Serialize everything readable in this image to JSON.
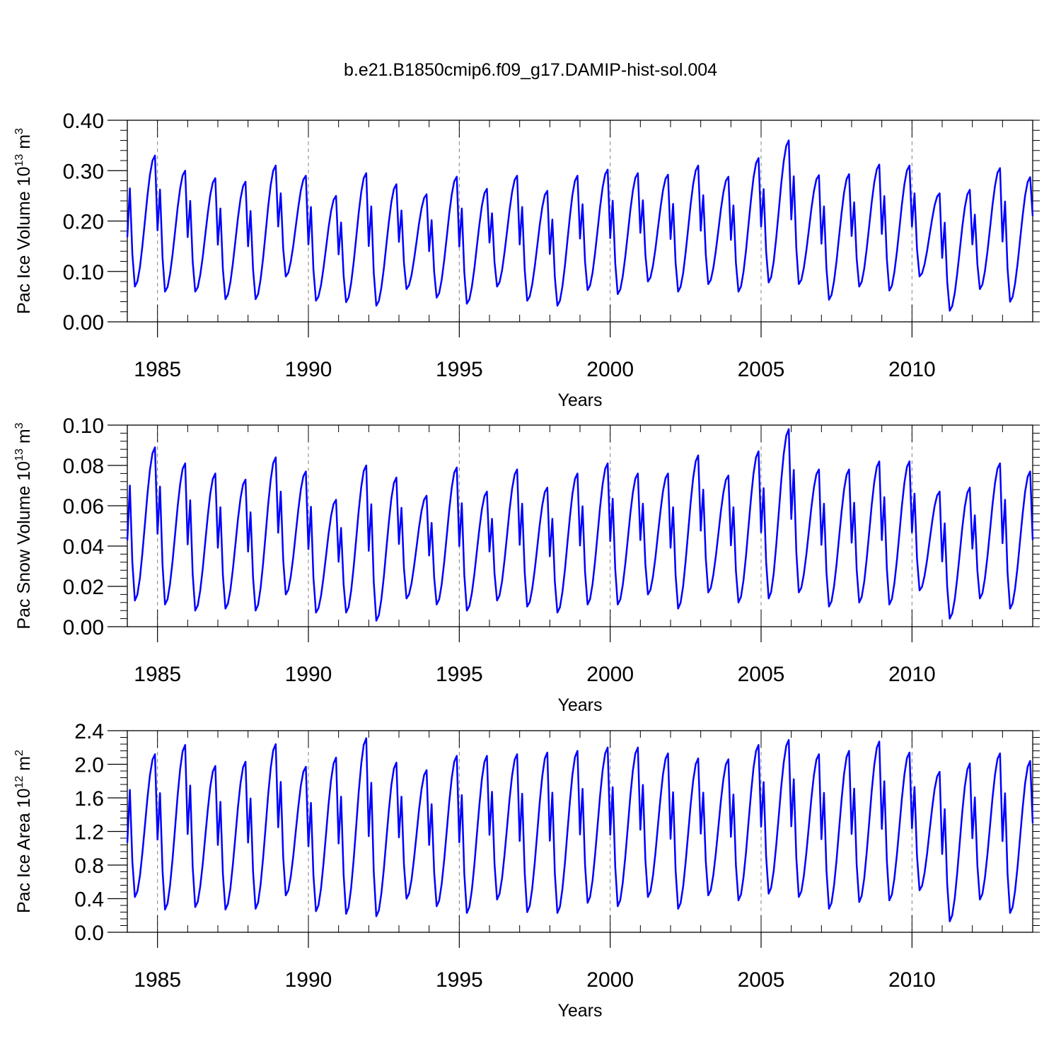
{
  "title": "b.e21.B1850cmip6.f09_g17.DAMIP-hist-sol.004",
  "colors": {
    "series": "#0000ff",
    "axis": "#000000",
    "grid": "#808080"
  },
  "chart_data": [
    {
      "type": "line",
      "xlabel": "Years",
      "ylabel": "Pac Ice Volume 10",
      "ylabel_sup": "13",
      "ylabel_unit": " m",
      "ylabel_unit_sup": "3",
      "xlim": [
        1984.0,
        2014.0
      ],
      "ylim": [
        0.0,
        0.4
      ],
      "xticks": [
        "1985",
        "1990",
        "1995",
        "2000",
        "2005",
        "2010"
      ],
      "yticks": [
        "0.00",
        "0.10",
        "0.20",
        "0.30",
        "0.40"
      ],
      "grid": "vertical dashed at labeled years",
      "series": [
        {
          "x_start": 1984.0,
          "x_step": 0.0833333,
          "annual_min": [
            0.07,
            0.06,
            0.06,
            0.045,
            0.045,
            0.09,
            0.042,
            0.039,
            0.032,
            0.065,
            0.048,
            0.036,
            0.07,
            0.042,
            0.032,
            0.063,
            0.055,
            0.08,
            0.06,
            0.075,
            0.06,
            0.078,
            0.075,
            0.044,
            0.07,
            0.062,
            0.09,
            0.022,
            0.065,
            0.04
          ],
          "annual_max": [
            0.33,
            0.3,
            0.285,
            0.278,
            0.31,
            0.29,
            0.25,
            0.295,
            0.273,
            0.253,
            0.288,
            0.264,
            0.29,
            0.26,
            0.29,
            0.302,
            0.295,
            0.292,
            0.31,
            0.288,
            0.325,
            0.36,
            0.291,
            0.293,
            0.312,
            0.31,
            0.255,
            0.262,
            0.305,
            0.287
          ],
          "end_value": 0.21
        }
      ]
    },
    {
      "type": "line",
      "xlabel": "Years",
      "ylabel": "Pac Snow Volume 10",
      "ylabel_sup": "13",
      "ylabel_unit": " m",
      "ylabel_unit_sup": "3",
      "xlim": [
        1984.0,
        2014.0
      ],
      "ylim": [
        0.0,
        0.1
      ],
      "xticks": [
        "1985",
        "1990",
        "1995",
        "2000",
        "2005",
        "2010"
      ],
      "yticks": [
        "0.00",
        "0.02",
        "0.04",
        "0.06",
        "0.08",
        "0.10"
      ],
      "grid": "vertical dashed at labeled years",
      "series": [
        {
          "x_start": 1984.0,
          "x_step": 0.0833333,
          "annual_min": [
            0.013,
            0.011,
            0.008,
            0.009,
            0.008,
            0.016,
            0.007,
            0.007,
            0.003,
            0.014,
            0.011,
            0.008,
            0.013,
            0.01,
            0.007,
            0.011,
            0.011,
            0.016,
            0.009,
            0.017,
            0.012,
            0.014,
            0.017,
            0.01,
            0.012,
            0.011,
            0.018,
            0.004,
            0.014,
            0.009
          ],
          "annual_max": [
            0.089,
            0.081,
            0.076,
            0.073,
            0.084,
            0.077,
            0.063,
            0.08,
            0.074,
            0.065,
            0.079,
            0.067,
            0.078,
            0.069,
            0.076,
            0.081,
            0.076,
            0.076,
            0.085,
            0.075,
            0.087,
            0.098,
            0.078,
            0.078,
            0.082,
            0.082,
            0.067,
            0.069,
            0.081,
            0.077
          ],
          "end_value": 0.043
        }
      ]
    },
    {
      "type": "line",
      "xlabel": "Years",
      "ylabel": "Pac Ice Area 10",
      "ylabel_sup": "12",
      "ylabel_unit": " m",
      "ylabel_unit_sup": "2",
      "xlim": [
        1984.0,
        2014.0
      ],
      "ylim": [
        0.0,
        2.4
      ],
      "xticks": [
        "1985",
        "1990",
        "1995",
        "2000",
        "2005",
        "2010"
      ],
      "yticks": [
        "0.0",
        "0.4",
        "0.8",
        "1.2",
        "1.6",
        "2.0",
        "2.4"
      ],
      "grid": "vertical dashed at labeled years",
      "series": [
        {
          "x_start": 1984.0,
          "x_step": 0.0833333,
          "annual_min": [
            0.42,
            0.27,
            0.3,
            0.27,
            0.28,
            0.44,
            0.25,
            0.22,
            0.19,
            0.4,
            0.31,
            0.23,
            0.39,
            0.24,
            0.23,
            0.35,
            0.31,
            0.42,
            0.28,
            0.44,
            0.38,
            0.46,
            0.42,
            0.28,
            0.36,
            0.38,
            0.5,
            0.13,
            0.39,
            0.23
          ],
          "annual_max": [
            2.12,
            2.23,
            1.98,
            2.03,
            2.24,
            1.97,
            2.08,
            2.31,
            2.02,
            1.93,
            2.1,
            2.1,
            2.12,
            2.14,
            2.16,
            2.2,
            2.2,
            2.13,
            2.07,
            2.06,
            2.23,
            2.29,
            2.12,
            2.16,
            2.27,
            2.14,
            1.91,
            2.01,
            2.13,
            2.04
          ],
          "end_value": 1.3
        }
      ]
    }
  ]
}
